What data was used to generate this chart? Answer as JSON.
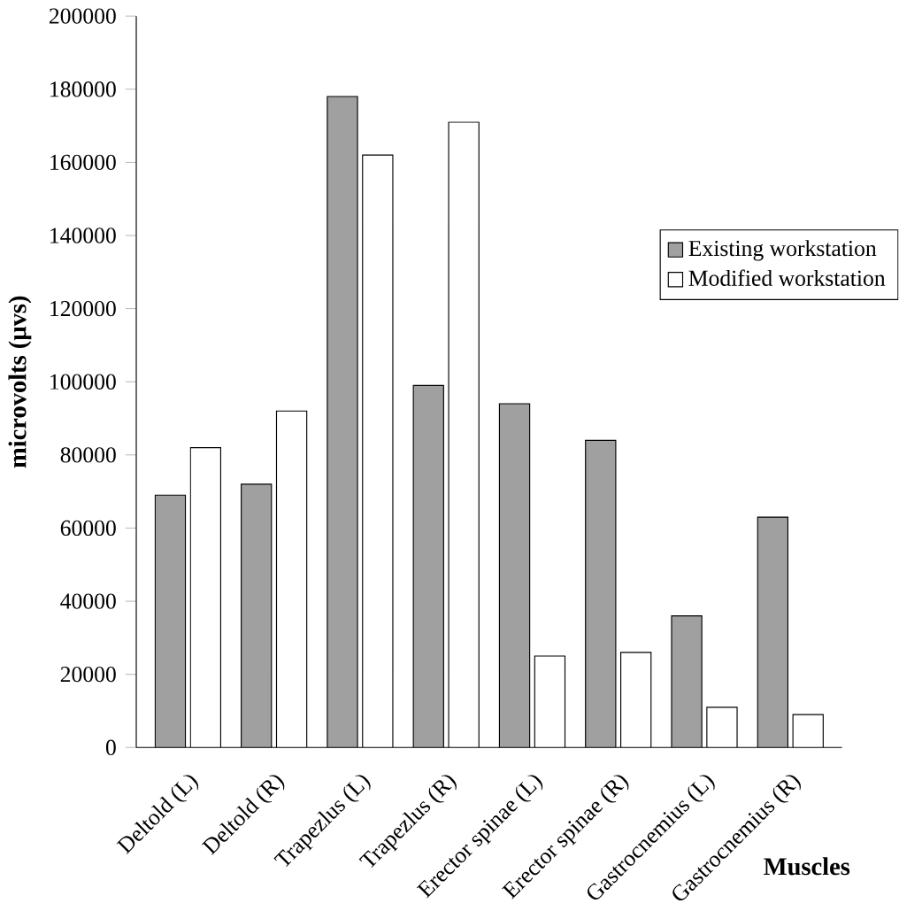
{
  "chart_data": {
    "type": "bar",
    "ylabel": "microvolts (µvs)",
    "xlabel": "Muscles",
    "categories": [
      "Deltold (L)",
      "Deltold (R)",
      "Trapezlus (L)",
      "Trapezlus (R)",
      "Erector spinae (L)",
      "Erector spinae (R)",
      "Gastrocnemius (L)",
      "Gastrocnemius (R)"
    ],
    "series": [
      {
        "name": "Existing workstation",
        "color": "#a0a0a0",
        "values": [
          69000,
          72000,
          178000,
          99000,
          94000,
          84000,
          36000,
          63000
        ]
      },
      {
        "name": "Modified workstation",
        "color": "#ffffff",
        "values": [
          82000,
          92000,
          162000,
          171000,
          25000,
          26000,
          11000,
          9000
        ]
      }
    ],
    "ylim": [
      0,
      200000
    ],
    "yticks": [
      0,
      20000,
      40000,
      60000,
      80000,
      100000,
      120000,
      140000,
      160000,
      180000,
      200000
    ],
    "legend": "right",
    "grid": false
  }
}
